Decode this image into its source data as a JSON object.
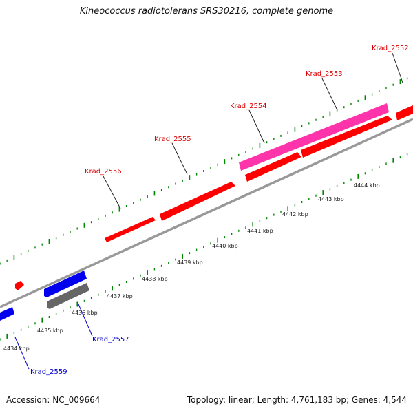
{
  "title": "Kineococcus radiotolerans SRS30216, complete genome",
  "footer": {
    "accession": "Accession: NC_009664",
    "summary": "Topology: linear; Length: 4,761,183 bp; Genes: 4,544"
  },
  "colors": {
    "forward_gene": "#ff0000",
    "highlight_gene": "#ff33aa",
    "reverse_gene": "#0000ee",
    "other_gene": "#666666",
    "backbone": "#999999",
    "ticks": "#008800",
    "label_red": "#dd0000",
    "label_blue": "#0000cc"
  },
  "scale_labels": [
    "4434 kbp",
    "4435 kbp",
    "4436 kbp",
    "4437 kbp",
    "4438 kbp",
    "4439 kbp",
    "4440 kbp",
    "4441 kbp",
    "4442 kbp",
    "4443 kbp",
    "4444 kbp"
  ],
  "gene_labels": [
    {
      "text": "Krad_2552",
      "color": "red"
    },
    {
      "text": "Krad_2553",
      "color": "red"
    },
    {
      "text": "Krad_2554",
      "color": "red"
    },
    {
      "text": "Krad_2555",
      "color": "red"
    },
    {
      "text": "Krad_2556",
      "color": "red"
    },
    {
      "text": "Krad_2557",
      "color": "blue"
    },
    {
      "text": "Krad_2559",
      "color": "blue"
    }
  ]
}
